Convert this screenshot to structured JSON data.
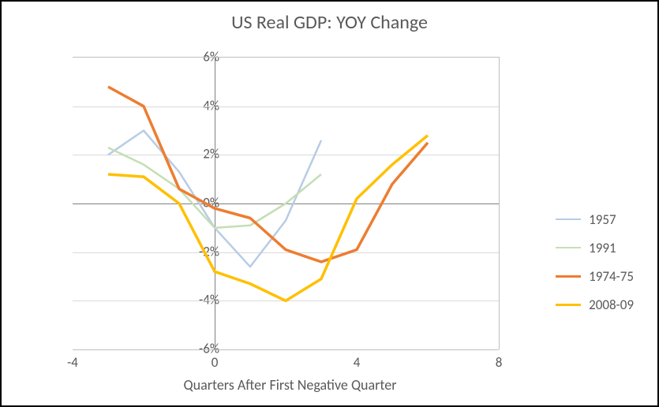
{
  "chart": {
    "type": "line",
    "title": "US Real GDP: YOY Change",
    "title_fontsize": 24,
    "title_color": "#595959",
    "background_color": "#ffffff",
    "border_color": "#000000",
    "x_axis": {
      "title": "Quarters After First Negative Quarter",
      "title_fontsize": 18,
      "min": -4,
      "max": 8,
      "tick_step": 4,
      "tick_labels": [
        "-4",
        "0",
        "4",
        "8"
      ],
      "label_fontsize": 17,
      "label_color": "#595959"
    },
    "y_axis": {
      "min": -6,
      "max": 6,
      "tick_step": 2,
      "tick_labels": [
        "6%",
        "4%",
        "2%",
        "0%",
        "-2%",
        "-4%",
        "-6%"
      ],
      "format": "percent",
      "label_fontsize": 17,
      "label_color": "#595959"
    },
    "grid": {
      "horizontal": true,
      "vertical": false,
      "color": "#d9d9d9"
    },
    "axis_line_color": "#808080",
    "plot_border_color": "#bfbfbf",
    "series": [
      {
        "name": "1957",
        "color": "#b8cce4",
        "line_width": 2.5,
        "x": [
          -3,
          -2,
          -1,
          0,
          1,
          2,
          3
        ],
        "y": [
          2.0,
          3.0,
          1.3,
          -1.0,
          -2.6,
          -0.7,
          2.6
        ]
      },
      {
        "name": "1991",
        "color": "#c5deb5",
        "line_width": 2.5,
        "x": [
          -3,
          -2,
          -1,
          0,
          1,
          2,
          3
        ],
        "y": [
          2.3,
          1.6,
          0.6,
          -1.0,
          -0.9,
          0.0,
          1.2
        ]
      },
      {
        "name": "1974-75",
        "color": "#ed7d31",
        "line_width": 3.5,
        "x": [
          -3,
          -2,
          -1,
          0,
          1,
          2,
          3,
          4,
          5,
          6
        ],
        "y": [
          4.8,
          4.0,
          0.6,
          -0.2,
          -0.6,
          -1.9,
          -2.4,
          -1.9,
          0.8,
          2.5
        ]
      },
      {
        "name": "2008-09",
        "color": "#ffc000",
        "line_width": 3.5,
        "x": [
          -3,
          -2,
          -1,
          0,
          1,
          2,
          3,
          4,
          5,
          6
        ],
        "y": [
          1.2,
          1.1,
          0.0,
          -2.8,
          -3.3,
          -4.0,
          -3.1,
          0.2,
          1.6,
          2.8
        ]
      }
    ],
    "legend": {
      "position": "right",
      "items": [
        "1957",
        "1991",
        "1974-75",
        "2008-09"
      ],
      "fontsize": 17,
      "color": "#595959"
    }
  }
}
